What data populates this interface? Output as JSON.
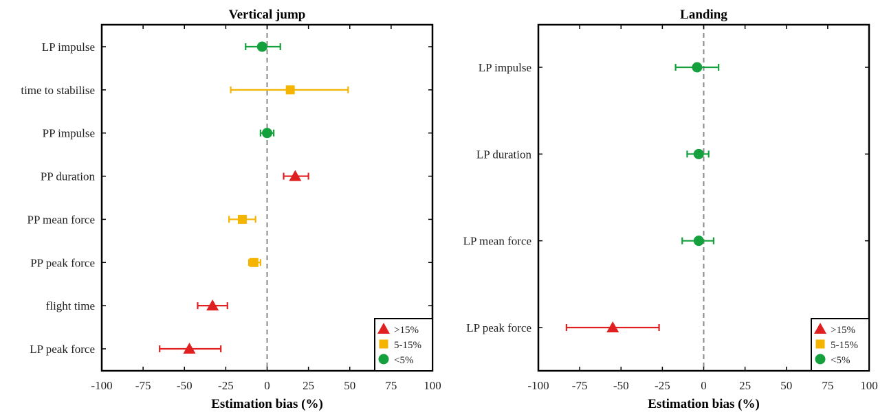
{
  "chart_data": [
    {
      "type": "scatter",
      "title": "Vertical jump",
      "xlabel": "Estimation bias (%)",
      "xlim": [
        -100,
        100
      ],
      "xticks": [
        "-100",
        "-75",
        "-50",
        "-25",
        "0",
        "25",
        "50",
        "75",
        "100"
      ],
      "reference_line_x": 0,
      "categories": [
        "LP impulse",
        "time to stabilise",
        "PP impulse",
        "PP duration",
        "PP mean force",
        "PP peak force",
        "flight time",
        "LP peak force"
      ],
      "points": [
        {
          "label": "LP impulse",
          "value": -3,
          "low": -13,
          "high": 8,
          "level": "<5%"
        },
        {
          "label": "time to stabilise",
          "value": 14,
          "low": -22,
          "high": 49,
          "level": "5-15%"
        },
        {
          "label": "PP impulse",
          "value": 0,
          "low": -4,
          "high": 4,
          "level": "<5%"
        },
        {
          "label": "PP duration",
          "value": 17,
          "low": 10,
          "high": 25,
          "level": ">15%"
        },
        {
          "label": "PP mean force",
          "value": -15,
          "low": -23,
          "high": -7,
          "level": "5-15%"
        },
        {
          "label": "PP peak force",
          "value": -8,
          "low": -11,
          "high": -4,
          "level": "5-15%"
        },
        {
          "label": "flight time",
          "value": -33,
          "low": -42,
          "high": -24,
          "level": ">15%"
        },
        {
          "label": "LP peak force",
          "value": -47,
          "low": -65,
          "high": -28,
          "level": ">15%"
        }
      ],
      "legend_position": "bottom-right"
    },
    {
      "type": "scatter",
      "title": "Landing",
      "xlabel": "Estimation bias (%)",
      "xlim": [
        -100,
        100
      ],
      "xticks": [
        "-100",
        "-75",
        "-50",
        "-25",
        "0",
        "25",
        "50",
        "75",
        "100"
      ],
      "reference_line_x": 0,
      "categories": [
        "LP impulse",
        "LP duration",
        "LP mean force",
        "LP peak force"
      ],
      "points": [
        {
          "label": "LP impulse",
          "value": -4,
          "low": -17,
          "high": 9,
          "level": "<5%"
        },
        {
          "label": "LP duration",
          "value": -3,
          "low": -10,
          "high": 3,
          "level": "<5%"
        },
        {
          "label": "LP mean force",
          "value": -3,
          "low": -13,
          "high": 6,
          "level": "<5%"
        },
        {
          "label": "LP peak force",
          "value": -55,
          "low": -83,
          "high": -27,
          "level": ">15%"
        }
      ],
      "legend_position": "bottom-right"
    }
  ],
  "legend": [
    {
      "label": ">15%",
      "marker": "triangle",
      "color": "#e02020"
    },
    {
      "label": "5-15%",
      "marker": "square",
      "color": "#f5b400"
    },
    {
      "label": "<5%",
      "marker": "circle",
      "color": "#14a03c"
    }
  ],
  "colors": {
    "axis": "#000000",
    "zero_line": "#888888"
  }
}
